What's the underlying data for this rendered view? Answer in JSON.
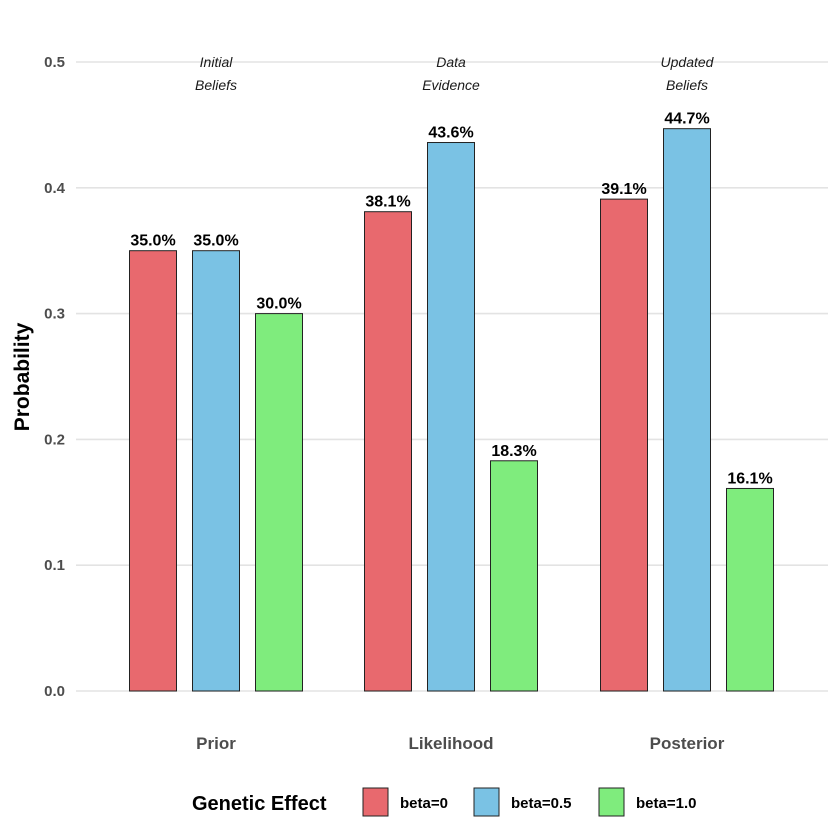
{
  "chart_data": {
    "type": "bar",
    "title": "",
    "xlabel": "",
    "ylabel": "Probability",
    "ylim": [
      0,
      0.5
    ],
    "yticks": [
      0.0,
      0.1,
      0.2,
      0.3,
      0.4,
      0.5
    ],
    "ytick_labels": [
      "0.0",
      "0.1",
      "0.2",
      "0.3",
      "0.4",
      "0.5"
    ],
    "grid": true,
    "categories": [
      "Prior",
      "Likelihood",
      "Posterior"
    ],
    "category_annotations": [
      [
        "Initial",
        "Beliefs"
      ],
      [
        "Data",
        "Evidence"
      ],
      [
        "Updated",
        "Beliefs"
      ]
    ],
    "series": [
      {
        "name": "beta=0",
        "color": "#E8696E",
        "values": [
          0.35,
          0.381,
          0.391
        ],
        "labels": [
          "35.0%",
          "38.1%",
          "39.1%"
        ]
      },
      {
        "name": "beta=0.5",
        "color": "#7AC2E4",
        "values": [
          0.35,
          0.436,
          0.447
        ],
        "labels": [
          "35.0%",
          "43.6%",
          "44.7%"
        ]
      },
      {
        "name": "beta=1.0",
        "color": "#7FEC7D",
        "values": [
          0.3,
          0.183,
          0.161
        ],
        "labels": [
          "30.0%",
          "18.3%",
          "16.1%"
        ]
      }
    ],
    "legend": {
      "title": "Genetic Effect",
      "position": "bottom"
    }
  }
}
